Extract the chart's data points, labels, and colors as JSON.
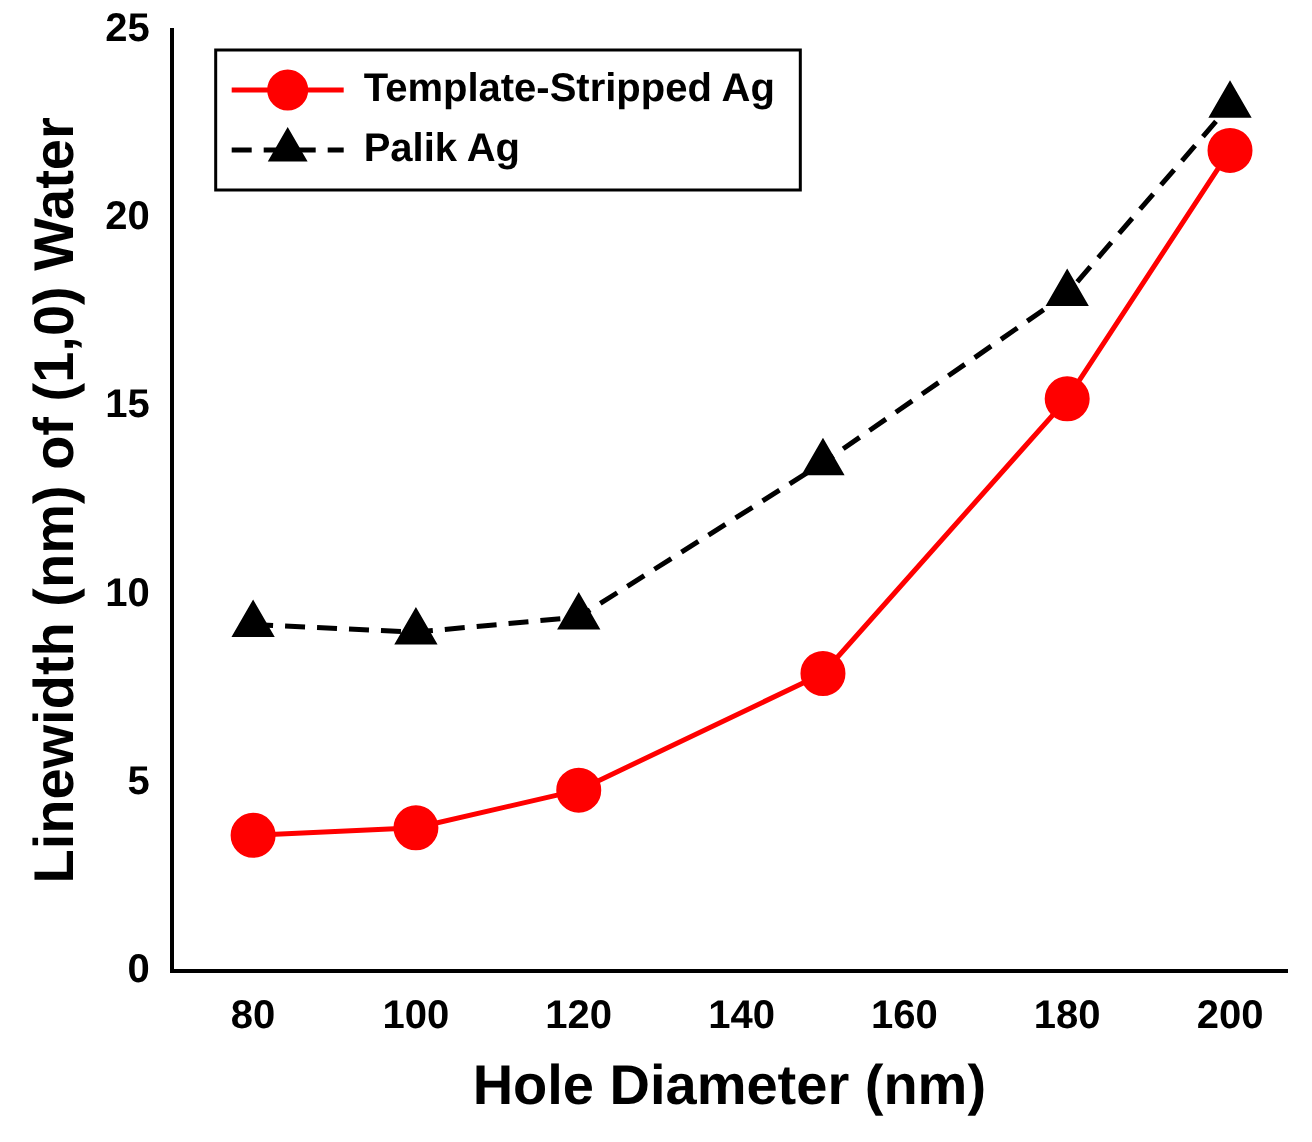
{
  "chart_data": {
    "type": "line",
    "xlabel": "Hole Diameter (nm)",
    "ylabel": "Linewidth (nm) of (1,0) Water",
    "x": [
      80,
      100,
      120,
      150,
      180,
      200
    ],
    "series": [
      {
        "name": "Template-Stripped Ag",
        "color": "#ff0000",
        "values": [
          3.6,
          3.8,
          4.8,
          7.9,
          15.2,
          21.8
        ],
        "marker": "circle",
        "line_style": "solid"
      },
      {
        "name": "Palik Ag",
        "color": "#000000",
        "values": [
          9.2,
          9.0,
          9.4,
          13.5,
          18.0,
          23.0
        ],
        "marker": "triangle",
        "line_style": "dashed"
      }
    ],
    "xlim": [
      70,
      207
    ],
    "xticks": [
      80,
      100,
      120,
      140,
      160,
      180,
      200
    ],
    "ylim": [
      0,
      25
    ],
    "yticks": [
      0,
      5,
      10,
      15,
      20,
      25
    ],
    "grid": false,
    "legend": "top left"
  }
}
